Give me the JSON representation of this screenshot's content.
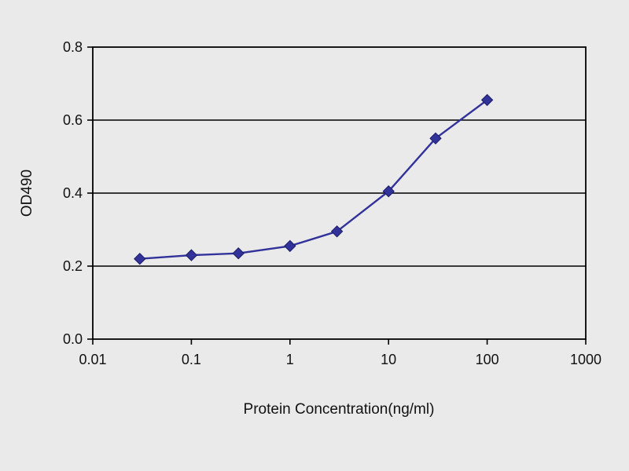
{
  "chart_data": {
    "type": "line",
    "title": "",
    "xlabel": "Protein Concentration(ng/ml)",
    "ylabel": "OD490",
    "xscale": "log",
    "xlim": [
      0.01,
      1000
    ],
    "ylim": [
      0.0,
      0.8
    ],
    "x": [
      0.03,
      0.1,
      0.3,
      1,
      3,
      10,
      30,
      100
    ],
    "series": [
      {
        "name": "OD490",
        "values": [
          0.22,
          0.23,
          0.235,
          0.255,
          0.295,
          0.405,
          0.55,
          0.655
        ]
      }
    ],
    "x_ticks": [
      0.01,
      0.1,
      1,
      10,
      100,
      1000
    ],
    "x_tick_labels": [
      "0.01",
      "0.1",
      "1",
      "10",
      "100",
      "1000"
    ],
    "y_ticks": [
      0.0,
      0.2,
      0.4,
      0.6,
      0.8
    ],
    "y_tick_labels": [
      "0.0",
      "0.2",
      "0.4",
      "0.6",
      "0.8"
    ],
    "gridlines_y": [
      0.2,
      0.4,
      0.6
    ],
    "grid": "horizontal-only",
    "legend": "none",
    "line_color": "#32329b",
    "marker": "diamond",
    "marker_color": "#32329b",
    "axis_color": "#000000",
    "background_color": "#eaeaea"
  }
}
